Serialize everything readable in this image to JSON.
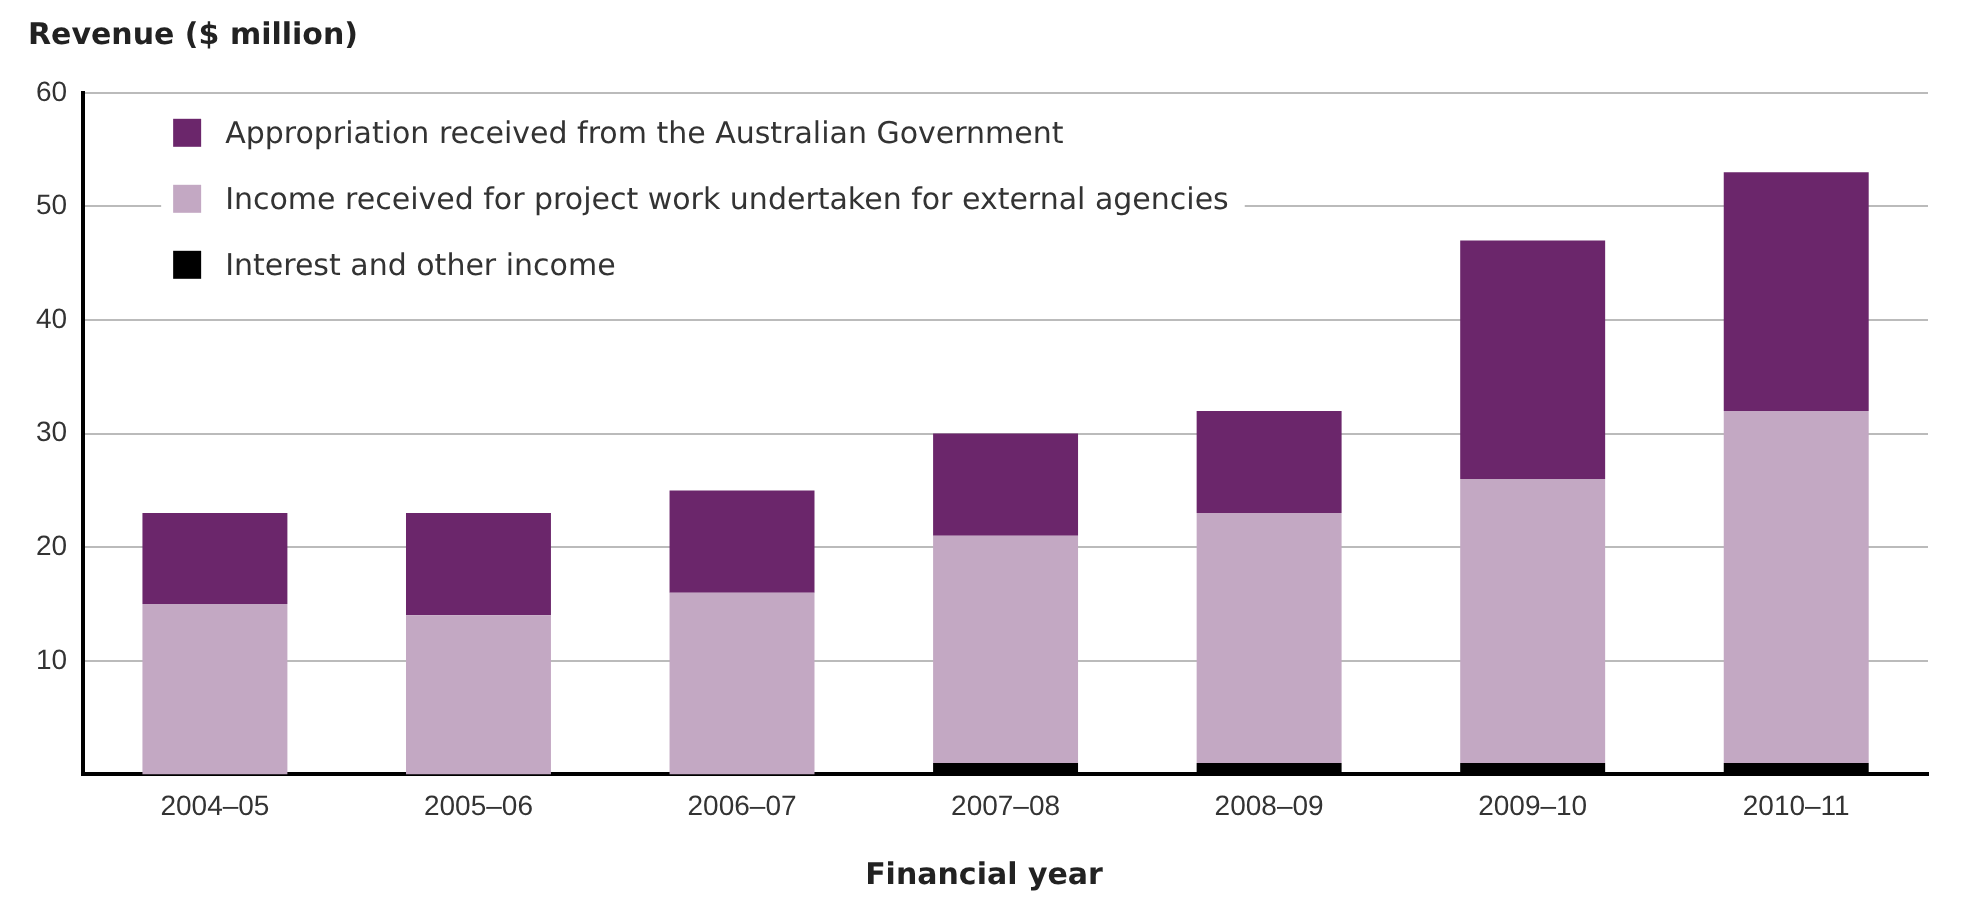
{
  "chart_data": {
    "type": "bar",
    "ylabel": "Revenue ($ million)",
    "xlabel": "Financial year",
    "stacked": true,
    "legend": "top left",
    "grid": "y",
    "categories": [
      "2004–05",
      "2005–06",
      "2006–07",
      "2007–08",
      "2008–09",
      "2009–10",
      "2010–11"
    ],
    "series": [
      {
        "name": "Interest and other income",
        "color": "#000000",
        "values": [
          0,
          0,
          0,
          1,
          1,
          1,
          1
        ]
      },
      {
        "name": "Income received for project work undertaken for external agencies",
        "color": "#c3a8c3",
        "values": [
          15,
          14,
          16,
          20,
          22,
          25,
          31
        ]
      },
      {
        "name": "Appropriation received from the Australian Government",
        "color": "#6b266b",
        "values": [
          8,
          9,
          9,
          9,
          9,
          21,
          21
        ]
      }
    ],
    "ylim": [
      0,
      60
    ],
    "yticks": [
      {
        "value": 0,
        "label": null
      },
      10,
      20,
      30,
      40,
      50,
      60
    ]
  }
}
